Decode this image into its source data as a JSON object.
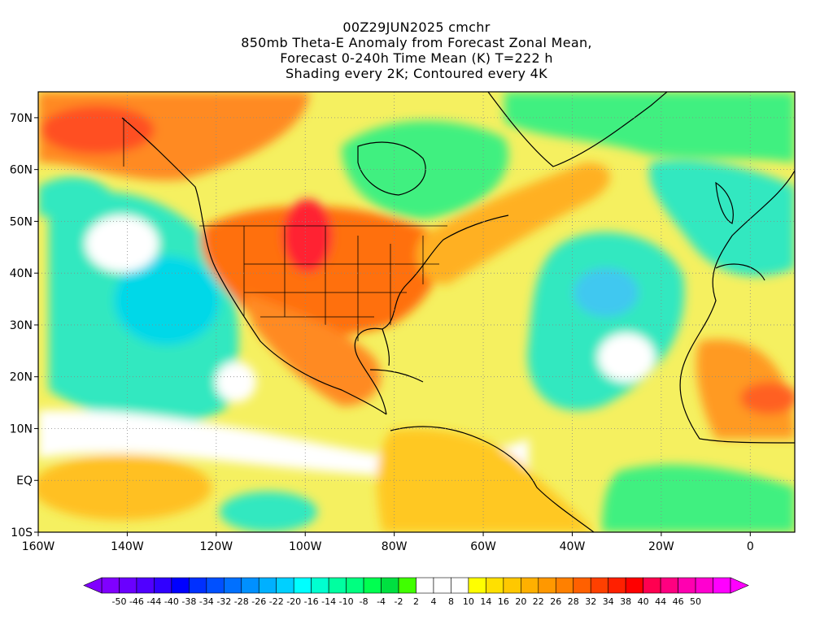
{
  "title": {
    "line1": "00Z29JUN2025 cmchr",
    "line2": "850mb Theta-E Anomaly from Forecast Zonal Mean,",
    "line3": "Forecast 0-240h Time Mean (K) T=222 h",
    "line4": "Shading every 2K; Contoured every 4K"
  },
  "map": {
    "lon_ticks": [
      "160W",
      "140W",
      "120W",
      "100W",
      "80W",
      "60W",
      "40W",
      "20W",
      "0"
    ],
    "lat_ticks": [
      "70N",
      "60N",
      "50N",
      "40N",
      "30N",
      "20N",
      "10N",
      "EQ",
      "10S"
    ],
    "lon_range": [
      -160,
      10
    ],
    "lat_range": [
      -10,
      75
    ]
  },
  "colorbar": {
    "labels": [
      "-50",
      "-46",
      "-44",
      "-40",
      "-38",
      "-34",
      "-32",
      "-28",
      "-26",
      "-22",
      "-20",
      "-16",
      "-14",
      "-10",
      "-8",
      "-4",
      "-2",
      "2",
      "4",
      "8",
      "10",
      "14",
      "16",
      "20",
      "22",
      "26",
      "28",
      "32",
      "34",
      "38",
      "40",
      "44",
      "46",
      "50"
    ],
    "colors": [
      "#8000ff",
      "#6a00ff",
      "#5000ff",
      "#3000ff",
      "#0000ff",
      "#0030ff",
      "#0050ff",
      "#0070ff",
      "#0090ff",
      "#00b0ff",
      "#00d0ff",
      "#00ffff",
      "#00ffd0",
      "#00ffa0",
      "#00ff80",
      "#00ff50",
      "#00e040",
      "#40ff00",
      "#ffffff",
      "#ffffff",
      "#ffffff",
      "#ffff00",
      "#ffe000",
      "#ffc800",
      "#ffb000",
      "#ff9800",
      "#ff8000",
      "#ff6000",
      "#ff4000",
      "#ff2000",
      "#ff0000",
      "#ff0050",
      "#ff0080",
      "#ff00b0",
      "#ff00d0",
      "#ff00ff"
    ]
  }
}
